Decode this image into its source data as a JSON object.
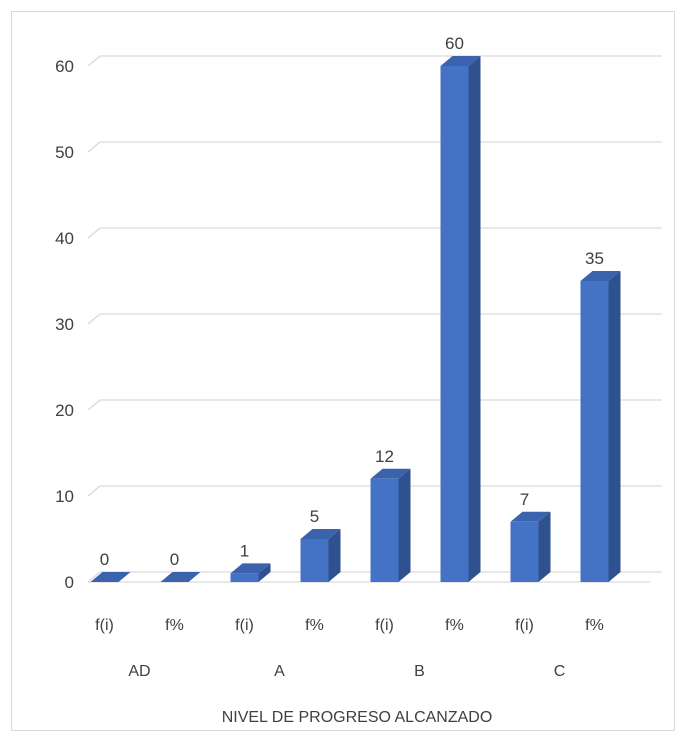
{
  "chart_data": {
    "type": "bar",
    "style": "3d-column",
    "title": "",
    "xlabel": "NIVEL DE PROGRESO ALCANZADO",
    "ylabel": "",
    "ylim": [
      0,
      60
    ],
    "yticks": [
      0,
      10,
      20,
      30,
      40,
      50,
      60
    ],
    "grid": true,
    "legend": "none",
    "groups": [
      "AD",
      "A",
      "B",
      "C"
    ],
    "categories": [
      "f(i)",
      "f%",
      "f(i)",
      "f%",
      "f(i)",
      "f%",
      "f(i)",
      "f%"
    ],
    "category_groups": [
      "AD",
      "AD",
      "A",
      "A",
      "B",
      "B",
      "C",
      "C"
    ],
    "values": [
      0,
      0,
      1,
      5,
      12,
      60,
      7,
      35
    ],
    "data_labels": [
      "0",
      "0",
      "1",
      "5",
      "12",
      "60",
      "7",
      "35"
    ],
    "colors": {
      "bar_front": "#4472c4",
      "bar_side": "#2f528f",
      "bar_top": "#3a62ad",
      "gridline": "#d9d9d9",
      "text": "#404040"
    }
  }
}
